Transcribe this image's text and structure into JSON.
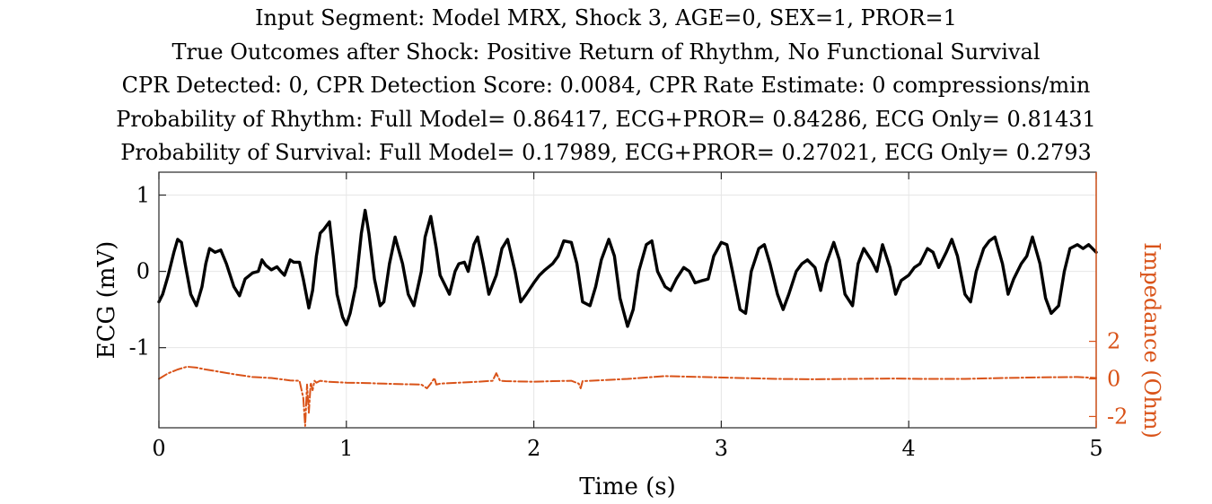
{
  "title_lines": [
    "Input Segment: Model MRX, Shock 3, AGE=0, SEX=1, PROR=1",
    "True Outcomes after Shock: Positive Return of Rhythm, No Functional Survival",
    "CPR Detected: 0, CPR Detection Score: 0.0084, CPR Rate Estimate: 0 compressions/min",
    "Probability of Rhythm: Full Model= 0.86417, ECG+PROR= 0.84286, ECG Only= 0.81431",
    "Probability of Survival: Full Model= 0.17989, ECG+PROR= 0.27021, ECG Only= 0.2793"
  ],
  "colors": {
    "ecg": "#000000",
    "impedance": "#D95319",
    "grid": "#e6e6e6"
  },
  "chart_data": {
    "type": "line",
    "xlabel": "Time (s)",
    "ylabel_left": "ECG (mV)",
    "ylabel_right": "Impedance (Ohm)",
    "xlim": [
      0,
      5
    ],
    "ylim_left": [
      -2.05,
      1.3
    ],
    "ylim_right": [
      -2.6,
      11
    ],
    "x_ticks": [
      0,
      1,
      2,
      3,
      4,
      5
    ],
    "x_tick_labels": [
      "0",
      "1",
      "2",
      "3",
      "4",
      "5"
    ],
    "y_left_ticks": [
      1,
      0,
      -1
    ],
    "y_left_tick_labels": [
      "1",
      "0",
      "-1"
    ],
    "y_right_ticks": [
      2,
      0,
      -2
    ],
    "y_right_tick_labels": [
      "2",
      "0",
      "-2"
    ],
    "grid": true,
    "series": [
      {
        "axis": "left",
        "style": "solid",
        "x": [
          0,
          0.02,
          0.05,
          0.08,
          0.1,
          0.12,
          0.14,
          0.17,
          0.2,
          0.23,
          0.25,
          0.27,
          0.3,
          0.33,
          0.36,
          0.4,
          0.43,
          0.46,
          0.5,
          0.53,
          0.55,
          0.57,
          0.6,
          0.63,
          0.65,
          0.67,
          0.7,
          0.72,
          0.75,
          0.77,
          0.8,
          0.82,
          0.84,
          0.86,
          0.88,
          0.91,
          0.93,
          0.95,
          0.98,
          1.0,
          1.02,
          1.05,
          1.08,
          1.1,
          1.12,
          1.15,
          1.18,
          1.2,
          1.23,
          1.26,
          1.3,
          1.33,
          1.36,
          1.4,
          1.42,
          1.45,
          1.48,
          1.5,
          1.53,
          1.55,
          1.58,
          1.6,
          1.63,
          1.65,
          1.68,
          1.7,
          1.73,
          1.76,
          1.8,
          1.83,
          1.86,
          1.9,
          1.93,
          1.96,
          2.0,
          2.03,
          2.06,
          2.1,
          2.13,
          2.16,
          2.2,
          2.23,
          2.26,
          2.3,
          2.33,
          2.36,
          2.4,
          2.43,
          2.46,
          2.5,
          2.53,
          2.56,
          2.6,
          2.63,
          2.66,
          2.7,
          2.73,
          2.76,
          2.8,
          2.83,
          2.86,
          2.9,
          2.93,
          2.96,
          3.0,
          3.03,
          3.06,
          3.1,
          3.13,
          3.16,
          3.2,
          3.23,
          3.26,
          3.3,
          3.33,
          3.36,
          3.4,
          3.43,
          3.46,
          3.5,
          3.53,
          3.56,
          3.6,
          3.63,
          3.66,
          3.7,
          3.73,
          3.76,
          3.8,
          3.83,
          3.86,
          3.9,
          3.93,
          3.96,
          4.0,
          4.03,
          4.06,
          4.1,
          4.13,
          4.16,
          4.2,
          4.23,
          4.26,
          4.3,
          4.33,
          4.36,
          4.4,
          4.43,
          4.46,
          4.5,
          4.53,
          4.56,
          4.6,
          4.63,
          4.66,
          4.7,
          4.73,
          4.76,
          4.8,
          4.83,
          4.86,
          4.9,
          4.93,
          4.96,
          5.0
        ],
        "y": [
          -0.4,
          -0.3,
          -0.05,
          0.25,
          0.42,
          0.38,
          0.1,
          -0.3,
          -0.45,
          -0.2,
          0.1,
          0.3,
          0.25,
          0.28,
          0.1,
          -0.2,
          -0.32,
          -0.1,
          -0.02,
          0.0,
          0.15,
          0.08,
          0.02,
          0.06,
          0.0,
          -0.05,
          0.15,
          0.12,
          0.12,
          -0.1,
          -0.48,
          -0.25,
          0.2,
          0.5,
          0.55,
          0.65,
          0.2,
          -0.3,
          -0.6,
          -0.7,
          -0.55,
          -0.2,
          0.5,
          0.8,
          0.5,
          -0.1,
          -0.45,
          -0.4,
          0.1,
          0.45,
          0.1,
          -0.3,
          -0.45,
          0.0,
          0.45,
          0.72,
          0.3,
          -0.05,
          -0.2,
          -0.3,
          0.0,
          0.1,
          0.12,
          0.0,
          0.35,
          0.45,
          0.1,
          -0.3,
          -0.05,
          0.3,
          0.42,
          0.0,
          -0.4,
          -0.3,
          -0.15,
          -0.05,
          0.02,
          0.1,
          0.2,
          0.4,
          0.38,
          0.1,
          -0.4,
          -0.45,
          -0.2,
          0.15,
          0.42,
          0.2,
          -0.35,
          -0.72,
          -0.5,
          0.0,
          0.35,
          0.4,
          0.0,
          -0.2,
          -0.25,
          -0.1,
          0.05,
          0.0,
          -0.15,
          -0.12,
          -0.1,
          0.2,
          0.38,
          0.35,
          0.0,
          -0.5,
          -0.55,
          0.0,
          0.3,
          0.35,
          0.1,
          -0.3,
          -0.5,
          -0.3,
          0.0,
          0.1,
          0.15,
          0.05,
          -0.25,
          0.1,
          0.38,
          0.15,
          -0.3,
          -0.45,
          0.1,
          0.3,
          0.15,
          0.0,
          0.35,
          0.05,
          -0.3,
          -0.12,
          -0.05,
          0.05,
          0.1,
          0.3,
          0.25,
          0.05,
          0.25,
          0.42,
          0.2,
          -0.3,
          -0.4,
          0.0,
          0.3,
          0.4,
          0.45,
          0.1,
          -0.3,
          -0.1,
          0.1,
          0.2,
          0.45,
          0.1,
          -0.35,
          -0.55,
          -0.45,
          0.0,
          0.3,
          0.35,
          0.3,
          0.35,
          0.25
        ]
      },
      {
        "axis": "right",
        "style": "dash-dot",
        "x": [
          0,
          0.05,
          0.1,
          0.15,
          0.2,
          0.25,
          0.3,
          0.4,
          0.5,
          0.6,
          0.7,
          0.75,
          0.77,
          0.78,
          0.79,
          0.8,
          0.81,
          0.82,
          0.83,
          0.84,
          0.86,
          0.9,
          1.0,
          1.1,
          1.2,
          1.3,
          1.4,
          1.43,
          1.45,
          1.47,
          1.48,
          1.5,
          1.6,
          1.7,
          1.78,
          1.8,
          1.82,
          1.85,
          2.0,
          2.1,
          2.2,
          2.24,
          2.25,
          2.26,
          2.3,
          2.5,
          2.7,
          2.9,
          3.1,
          3.3,
          3.5,
          3.7,
          3.9,
          4.1,
          4.3,
          4.5,
          4.7,
          4.9,
          5.0
        ],
        "y": [
          0.0,
          0.3,
          0.5,
          0.65,
          0.6,
          0.5,
          0.42,
          0.25,
          0.1,
          0.05,
          -0.08,
          -0.1,
          -1.0,
          -2.5,
          -0.3,
          -1.8,
          -0.2,
          -0.6,
          -0.1,
          -0.2,
          -0.1,
          -0.15,
          -0.2,
          -0.22,
          -0.25,
          -0.28,
          -0.3,
          -0.5,
          -0.25,
          0.05,
          -0.3,
          -0.25,
          -0.2,
          -0.15,
          -0.1,
          0.3,
          -0.1,
          -0.12,
          -0.15,
          -0.12,
          -0.1,
          -0.25,
          -0.5,
          -0.12,
          -0.1,
          0.0,
          0.15,
          0.1,
          0.05,
          0.0,
          -0.02,
          0.0,
          0.02,
          0.0,
          0.0,
          0.05,
          0.08,
          0.1,
          0.05
        ]
      }
    ]
  }
}
